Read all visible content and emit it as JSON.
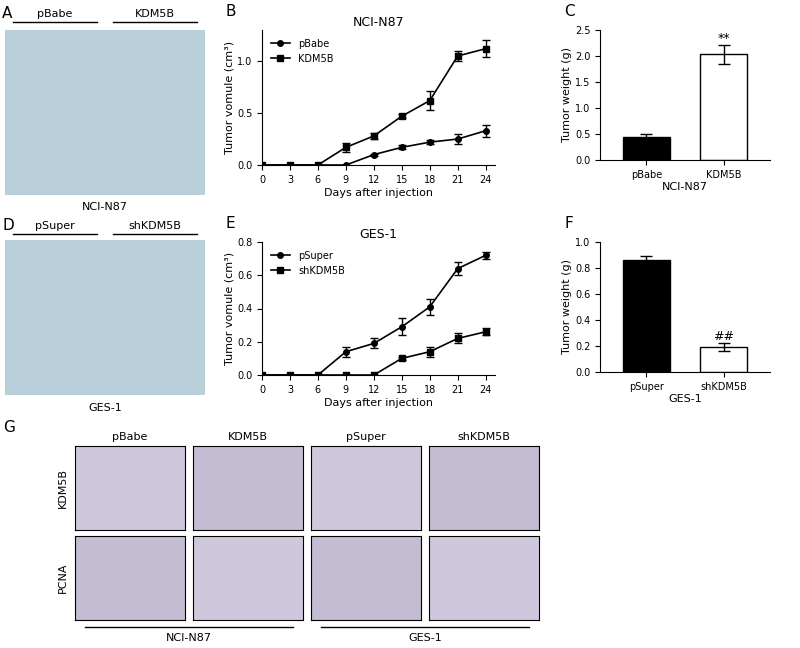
{
  "chart_data": [
    {
      "type": "line",
      "panel": "B",
      "title": "NCI-N87",
      "x_label": "Days after injection",
      "y_label": "Tumor vomule (cm³)",
      "x": [
        0,
        3,
        6,
        9,
        12,
        15,
        18,
        21,
        24
      ],
      "xlim": [
        0,
        25
      ],
      "xticks": [
        0,
        3,
        6,
        9,
        12,
        15,
        18,
        21,
        24
      ],
      "ylim": [
        0,
        1.3
      ],
      "yticks": [
        {
          "value": 0,
          "label": "0.0"
        },
        0.5,
        {
          "value": 1,
          "label": "1.0"
        }
      ],
      "grid": false,
      "legend": "upper left",
      "series": [
        {
          "name": "pBabe",
          "color": "#000000",
          "marker": "circle",
          "values": [
            0,
            0,
            0,
            0,
            0.1,
            0.17,
            0.22,
            0.25,
            0.33
          ],
          "error": [
            0,
            0,
            0,
            0,
            0.01,
            0.02,
            0.02,
            0.05,
            0.06
          ]
        },
        {
          "name": "KDM5B",
          "color": "#000000",
          "marker": "square",
          "values": [
            0,
            0,
            0,
            0.17,
            0.28,
            0.47,
            0.62,
            1.05,
            1.12
          ],
          "error": [
            0,
            0,
            0,
            0.04,
            0.03,
            0.02,
            0.09,
            0.05,
            0.08
          ]
        }
      ]
    },
    {
      "type": "bar",
      "panel": "C",
      "x_label": "NCI-N87",
      "y_label": "Tumor weight (g)",
      "categories": [
        "pBabe",
        "KDM5B"
      ],
      "values": [
        0.45,
        2.03
      ],
      "error": [
        0.05,
        0.18
      ],
      "colors": [
        "#000000",
        "#ffffff"
      ],
      "ylim": [
        0,
        2.5
      ],
      "yticks": [
        {
          "value": 0,
          "label": "0.0"
        },
        0.5,
        {
          "value": 1,
          "label": "1.0"
        },
        1.5,
        {
          "value": 2,
          "label": "2.0"
        },
        2.5
      ],
      "grid": false,
      "annotations": [
        {
          "text": "**",
          "category": "KDM5B"
        }
      ]
    },
    {
      "type": "line",
      "panel": "E",
      "title": "GES-1",
      "x_label": "Days after injection",
      "y_label": "Tumor vomule (cm³)",
      "x": [
        0,
        3,
        6,
        9,
        12,
        15,
        18,
        21,
        24
      ],
      "xlim": [
        0,
        25
      ],
      "xticks": [
        0,
        3,
        6,
        9,
        12,
        15,
        18,
        21,
        24
      ],
      "ylim": [
        0,
        0.8
      ],
      "yticks": [
        {
          "value": 0,
          "label": "0.0"
        },
        0.2,
        0.4,
        0.6,
        0.8
      ],
      "grid": false,
      "legend": "upper left",
      "series": [
        {
          "name": "pSuper",
          "color": "#000000",
          "marker": "circle",
          "values": [
            0,
            0,
            0,
            0.14,
            0.19,
            0.29,
            0.41,
            0.64,
            0.72
          ],
          "error": [
            0,
            0,
            0,
            0.03,
            0.03,
            0.05,
            0.05,
            0.04,
            0.02
          ]
        },
        {
          "name": "shKDM5B",
          "color": "#000000",
          "marker": "square",
          "values": [
            0,
            0,
            0,
            0,
            0,
            0.1,
            0.14,
            0.22,
            0.26
          ],
          "error": [
            0,
            0,
            0,
            0,
            0,
            0.01,
            0.03,
            0.03,
            0.02
          ]
        }
      ]
    },
    {
      "type": "bar",
      "panel": "F",
      "x_label": "GES-1",
      "y_label": "Tumor weight (g)",
      "categories": [
        "pSuper",
        "shKDM5B"
      ],
      "values": [
        0.86,
        0.19
      ],
      "error": [
        0.03,
        0.03
      ],
      "colors": [
        "#000000",
        "#ffffff"
      ],
      "ylim": [
        0,
        1.0
      ],
      "yticks": [
        {
          "value": 0,
          "label": "0.0"
        },
        0.2,
        0.4,
        0.6,
        0.8,
        {
          "value": 1,
          "label": "1.0"
        }
      ],
      "grid": false,
      "annotations": [
        {
          "text": "##",
          "category": "shKDM5B"
        }
      ]
    }
  ],
  "images": [
    {
      "panel": "A",
      "groups": [
        "pBabe",
        "KDM5B"
      ],
      "caption": "NCI-N87"
    },
    {
      "panel": "D",
      "groups": [
        "pSuper",
        "shKDM5B"
      ],
      "caption": "GES-1"
    },
    {
      "panel": "G",
      "columns": [
        "pBabe",
        "KDM5B",
        "pSuper",
        "shKDM5B"
      ],
      "rows": [
        "KDM5B",
        "PCNA"
      ],
      "captions": [
        "NCI-N87",
        "GES-1"
      ]
    }
  ]
}
